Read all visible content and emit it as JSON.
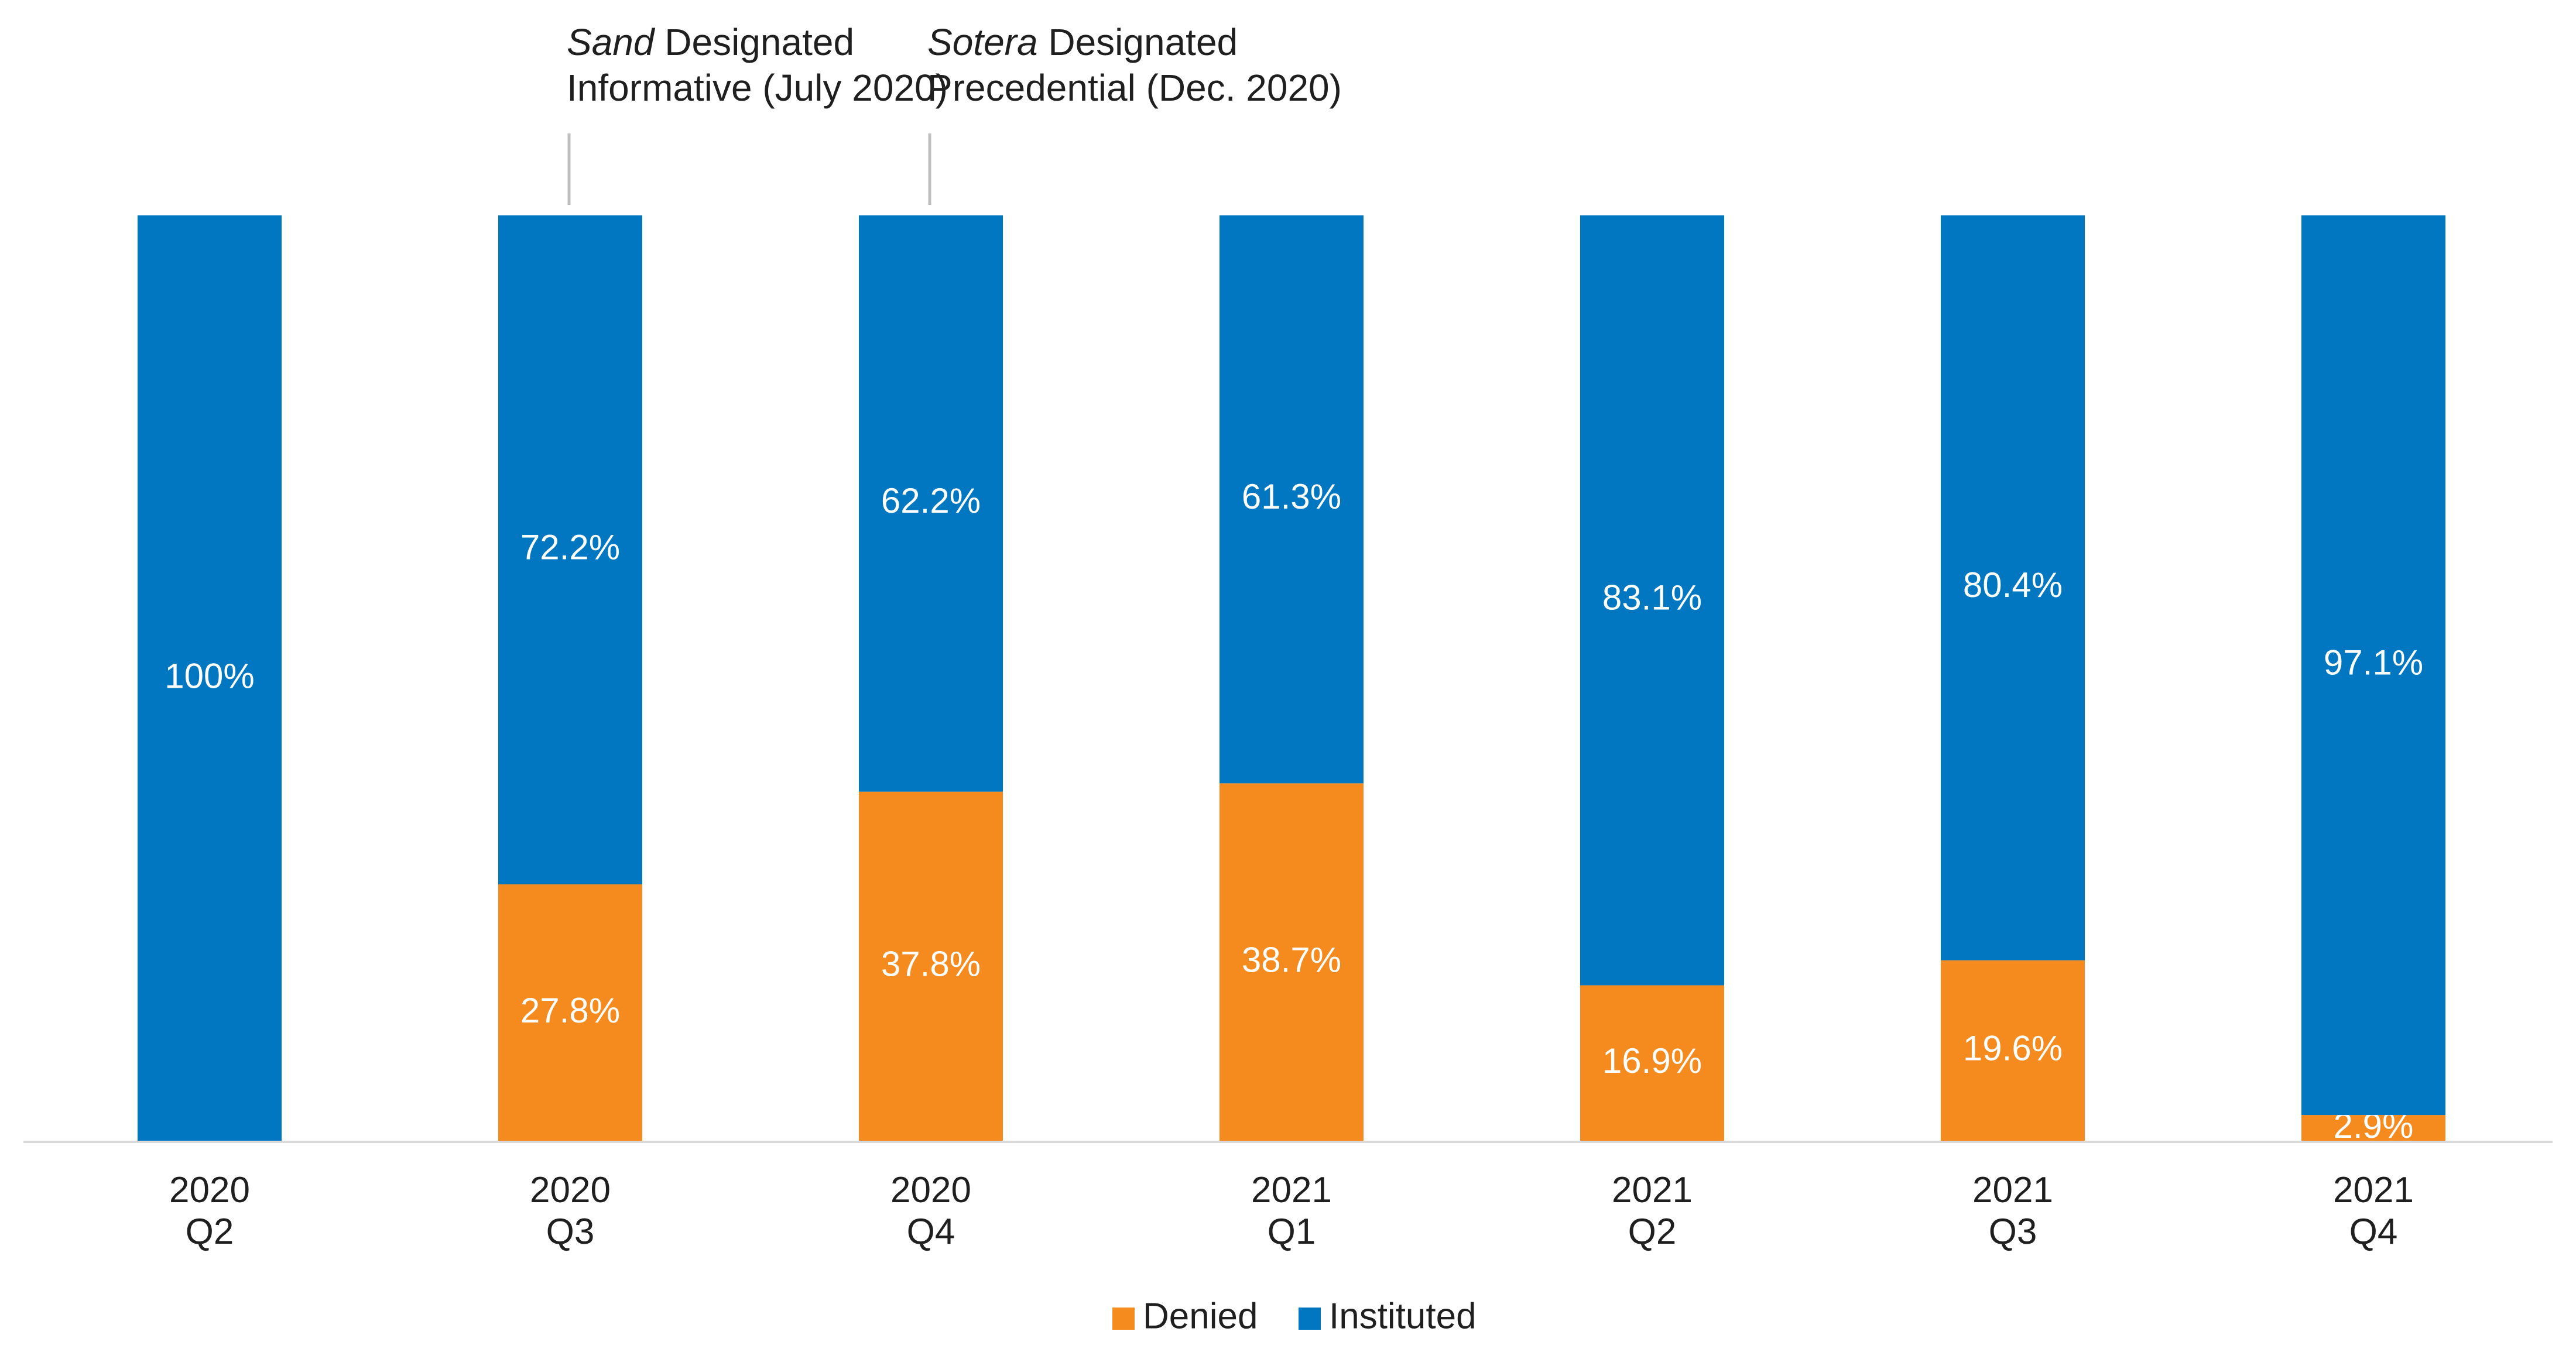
{
  "chart_data": {
    "type": "bar",
    "stacked": true,
    "categories": [
      [
        "2020",
        "Q2"
      ],
      [
        "2020",
        "Q3"
      ],
      [
        "2020",
        "Q4"
      ],
      [
        "2021",
        "Q1"
      ],
      [
        "2021",
        "Q2"
      ],
      [
        "2021",
        "Q3"
      ],
      [
        "2021",
        "Q4"
      ]
    ],
    "series": [
      {
        "name": "Denied",
        "color": "#F58B1F",
        "values": [
          0,
          27.8,
          37.8,
          38.7,
          16.9,
          19.6,
          2.9
        ],
        "labels": [
          "",
          "27.8%",
          "37.8%",
          "38.7%",
          "16.9%",
          "19.6%",
          "2.9%"
        ]
      },
      {
        "name": "Instituted",
        "color": "#0077C0",
        "values": [
          100,
          72.2,
          62.2,
          61.3,
          83.1,
          80.4,
          97.1
        ],
        "labels": [
          "100%",
          "72.2%",
          "62.2%",
          "61.3%",
          "83.1%",
          "80.4%",
          "97.1%"
        ]
      }
    ],
    "ylim": [
      0,
      100
    ],
    "grid": false,
    "legend_position": "bottom-center",
    "annotations": [
      {
        "category_index": 1,
        "italic": "Sand",
        "line1_rest": " Designated",
        "line2": "Informative (July 2020)"
      },
      {
        "category_index": 2,
        "italic": "Sotera",
        "line1_rest": " Designated",
        "line2": "Precedential (Dec. 2020)"
      }
    ]
  }
}
